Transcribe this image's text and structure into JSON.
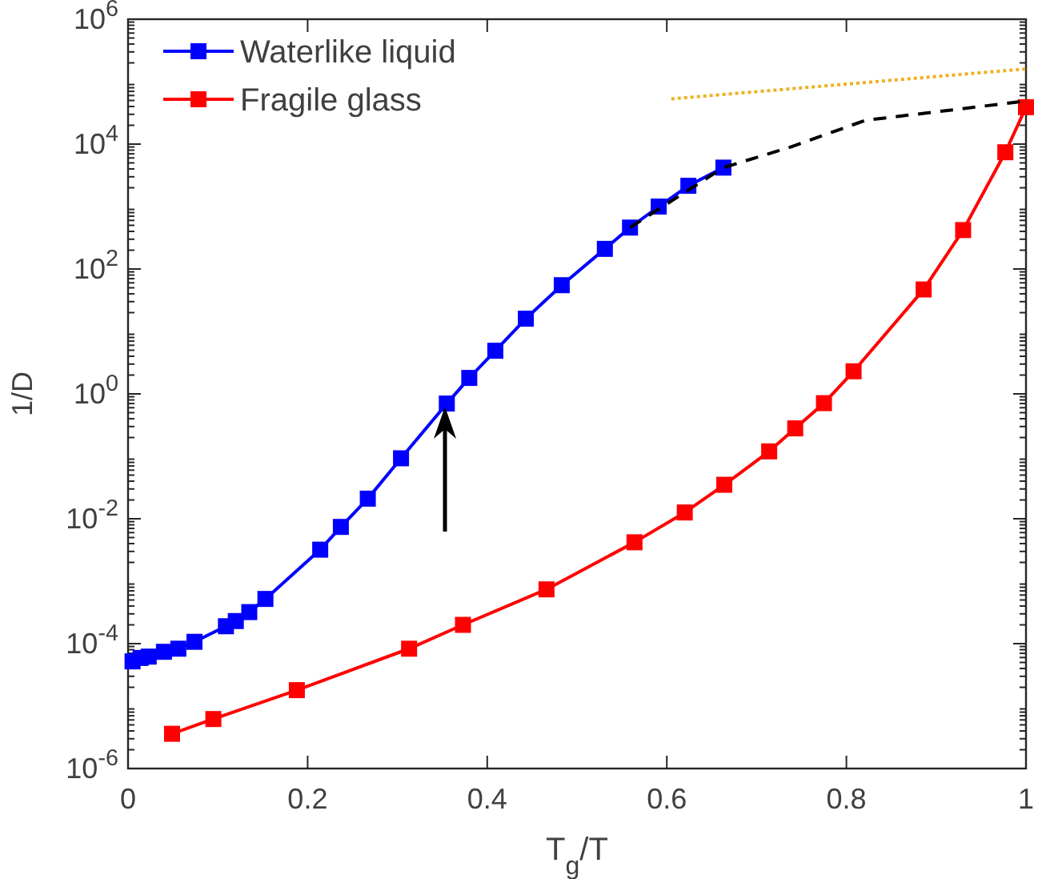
{
  "chart_data": {
    "type": "line",
    "xlabel": "T$_{g}$/T",
    "ylabel": "1/D",
    "log": "y",
    "legend": "top left",
    "marker": "square",
    "grid": false,
    "xlim": [
      0,
      1
    ],
    "xticks": [
      0,
      0.2,
      0.4,
      0.6,
      0.8,
      1
    ],
    "ylim": [
      1e-06,
      1000000.0
    ],
    "yticks": [
      {
        "value": 1e-06,
        "label": "10$^{-6}$"
      },
      {
        "value": 0.0001,
        "label": "10$^{-4}$"
      },
      {
        "value": 0.01,
        "label": "10$^{-2}$"
      },
      {
        "value": 1,
        "label": "10$^{0}$"
      },
      {
        "value": 100,
        "label": "10$^{2}$"
      },
      {
        "value": 10000,
        "label": "10$^{4}$"
      },
      {
        "value": 1000000,
        "label": "10$^{6}$"
      }
    ],
    "series": [
      {
        "name": "Waterlike liquid",
        "color": "#0000ff",
        "x": [
          0.005,
          0.014,
          0.023,
          0.04,
          0.056,
          0.074,
          0.109,
          0.12,
          0.135,
          0.153,
          0.214,
          0.237,
          0.267,
          0.304,
          0.355,
          0.38,
          0.409,
          0.443,
          0.483,
          0.531,
          0.559,
          0.591,
          0.624,
          0.663
        ],
        "values": [
          5.2e-05,
          5.9e-05,
          6.2e-05,
          7.4e-05,
          8.3e-05,
          0.000107,
          0.00019,
          0.00023,
          0.00032,
          0.00052,
          0.0032,
          0.0074,
          0.021,
          0.093,
          0.7,
          1.8,
          4.9,
          16,
          55,
          210,
          460,
          1000,
          2150,
          4200
        ]
      },
      {
        "name": "Fragile glass",
        "color": "#ff0000",
        "x": [
          0.049,
          0.095,
          0.188,
          0.313,
          0.373,
          0.466,
          0.564,
          0.62,
          0.664,
          0.714,
          0.743,
          0.775,
          0.808,
          0.886,
          0.93,
          0.977,
          1.0
        ],
        "values": [
          3.6e-06,
          6.2e-06,
          1.8e-05,
          8.3e-05,
          0.0002,
          0.00074,
          0.0042,
          0.0126,
          0.035,
          0.12,
          0.28,
          0.71,
          2.3,
          47,
          420,
          7400,
          39000
        ]
      },
      {
        "color": "#000000",
        "marker": "none",
        "line_style": "dashed",
        "x": [
          0.559,
          0.663,
          0.738,
          0.821,
          1.0
        ],
        "values": [
          460,
          4200,
          9000,
          24000,
          49000
        ]
      },
      {
        "color": "#edb120",
        "marker": "none",
        "line_style": "dotted",
        "x": [
          0.605,
          1.0
        ],
        "values": [
          53000,
          160000
        ]
      }
    ]
  }
}
